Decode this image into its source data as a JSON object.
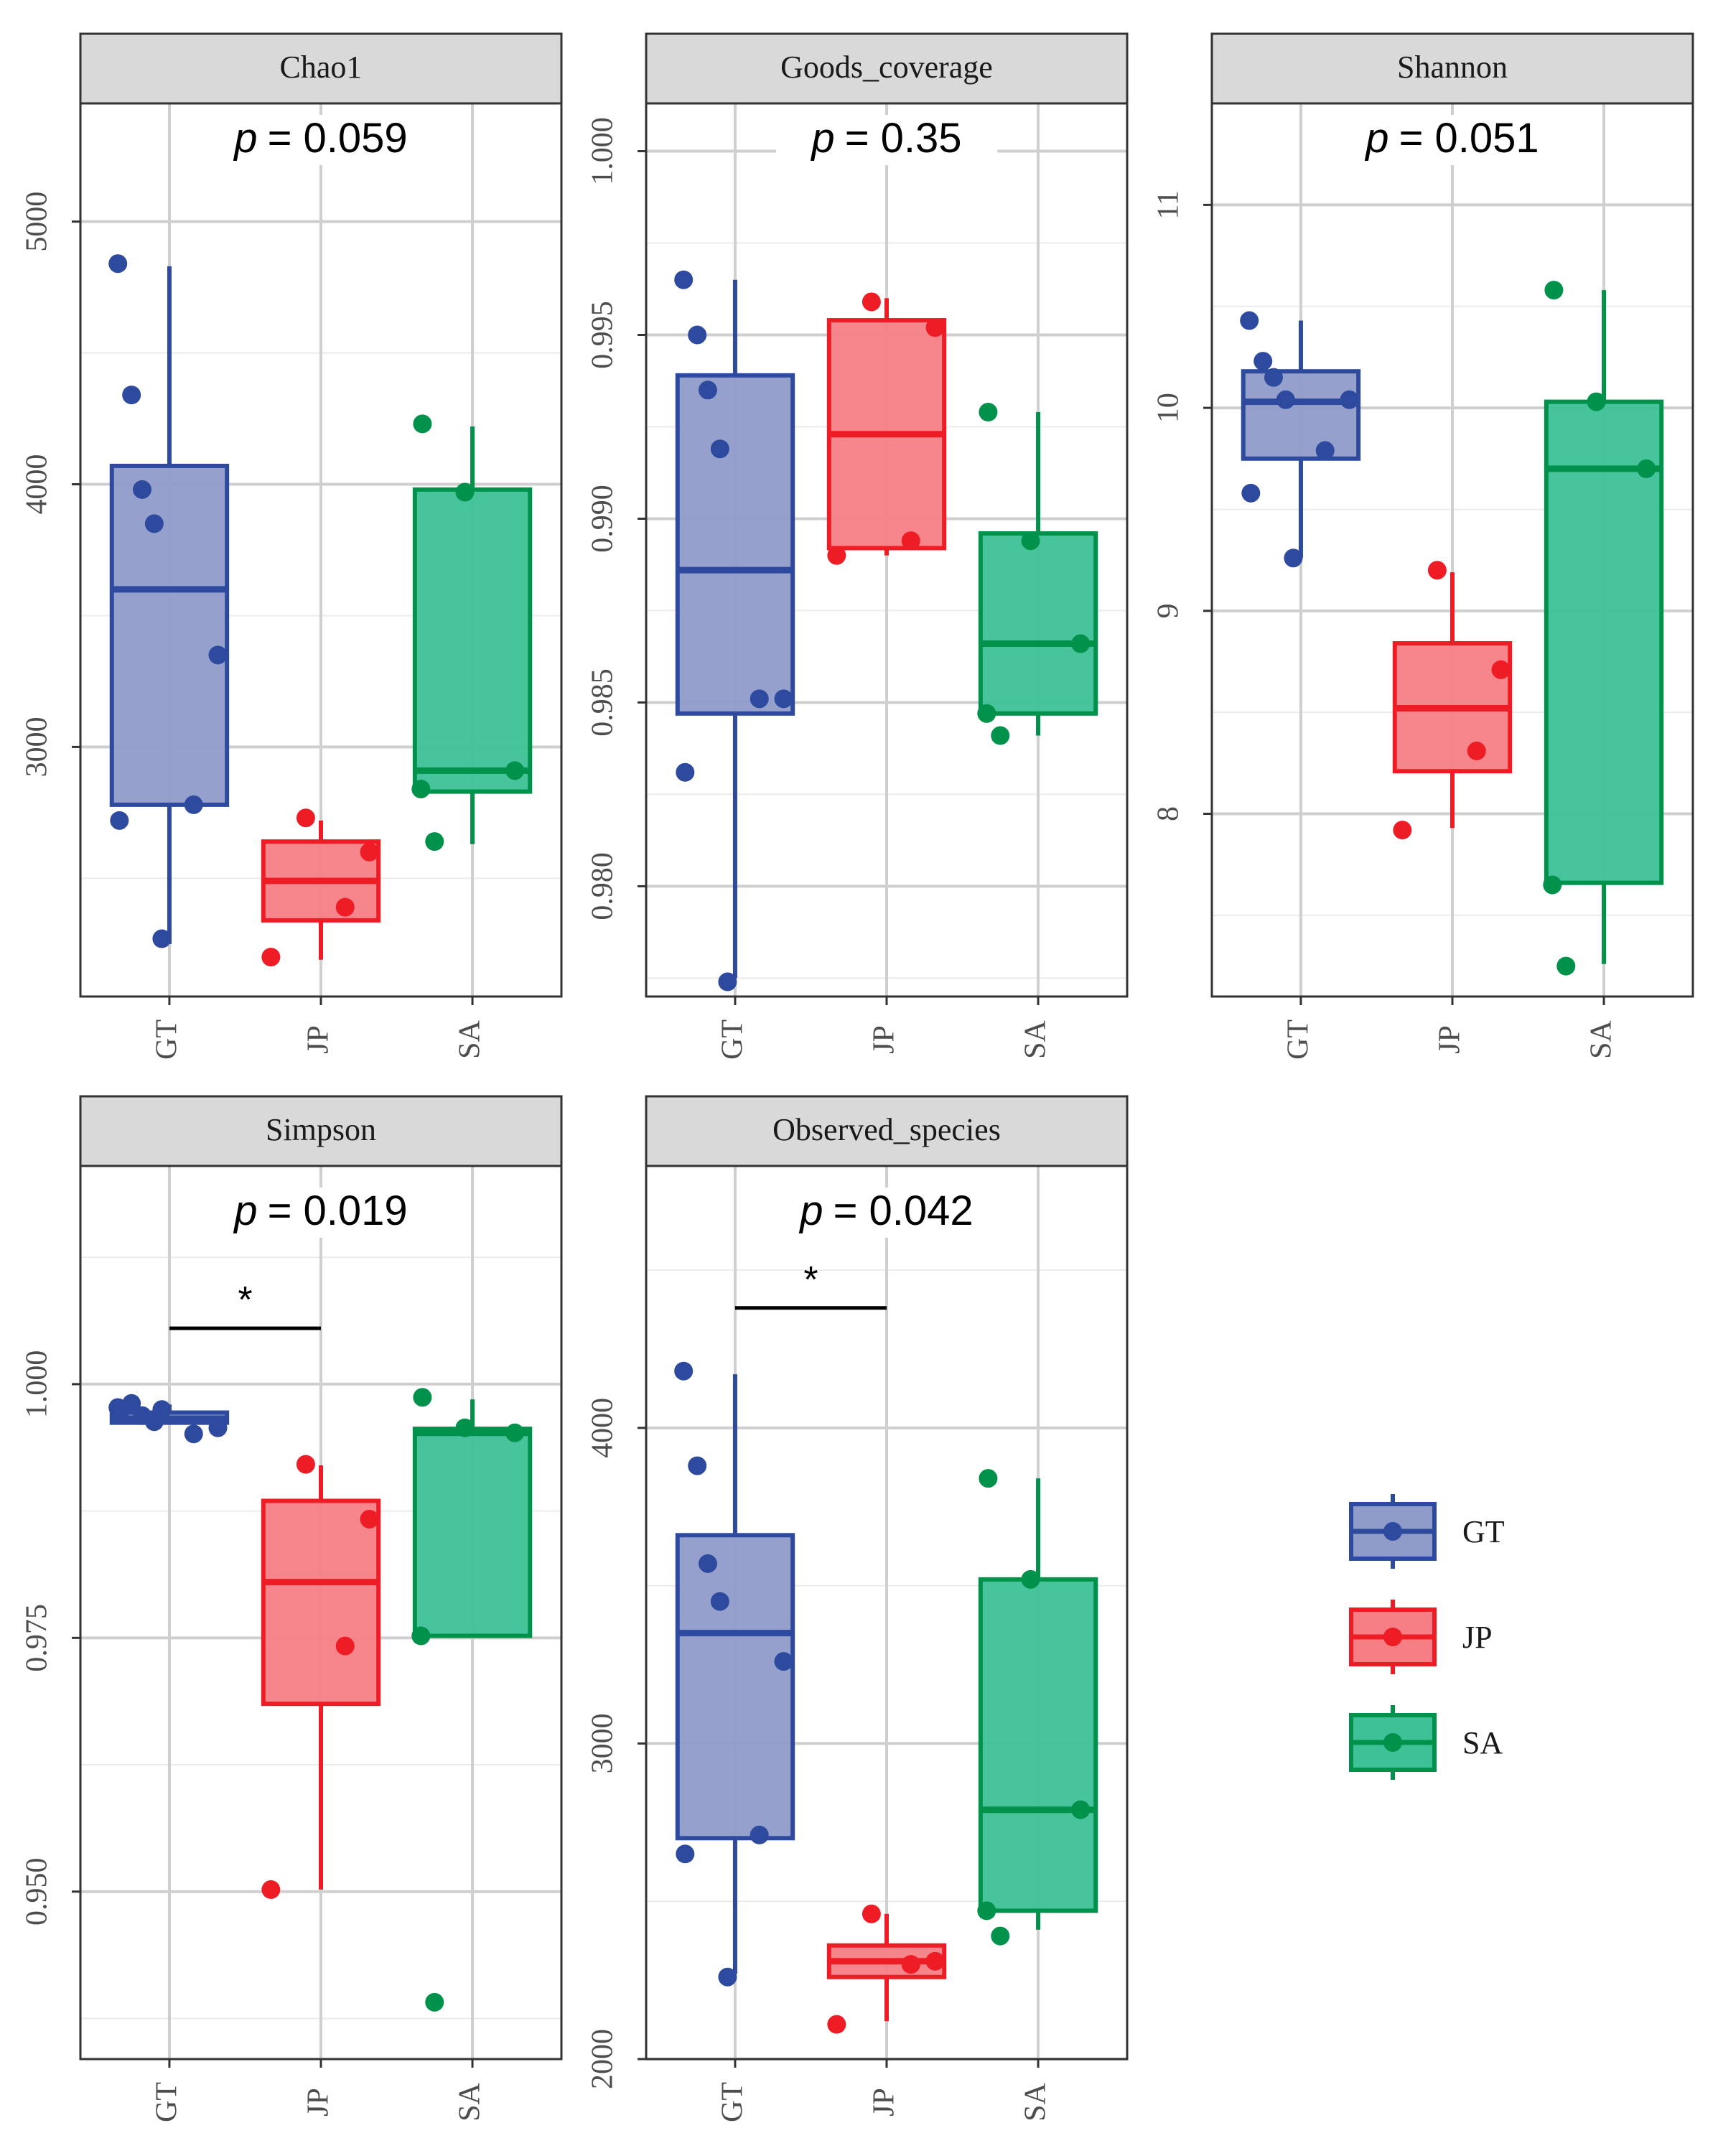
{
  "groups": [
    "GT",
    "JP",
    "SA"
  ],
  "colors": {
    "GT": {
      "line": "#2e4a9e",
      "fill": "#8f9cc9",
      "point": "#2e4a9e"
    },
    "JP": {
      "line": "#ee1c25",
      "fill": "#f67f86",
      "point": "#ee1c25"
    },
    "SA": {
      "line": "#00924a",
      "fill": "#3ec197",
      "point": "#00924a"
    }
  },
  "legend": {
    "items": [
      "GT",
      "JP",
      "SA"
    ]
  },
  "chart_data": [
    {
      "type": "boxplot",
      "title": "Chao1",
      "p_label": "p",
      "p_value": "= 0.059",
      "ylim": [
        2050,
        5450
      ],
      "yticks": [
        3000,
        4000,
        5000
      ],
      "yminor": [
        2500,
        3500,
        4500
      ],
      "boxes": {
        "GT": {
          "q1": 2780,
          "median": 3600,
          "q3": 4070,
          "whisker_low": 2250,
          "whisker_high": 4830
        },
        "JP": {
          "q1": 2340,
          "median": 2490,
          "q3": 2640,
          "whisker_low": 2190,
          "whisker_high": 2720
        },
        "SA": {
          "q1": 2830,
          "median": 2910,
          "q3": 3980,
          "whisker_low": 2630,
          "whisker_high": 4220
        }
      },
      "points": {
        "GT": [
          4840,
          4340,
          3980,
          3850,
          3350,
          2780,
          2720,
          2270
        ],
        "JP": [
          2730,
          2600,
          2390,
          2200
        ],
        "SA": [
          4230,
          3970,
          2910,
          2840,
          2640
        ]
      },
      "signif": null
    },
    {
      "type": "boxplot",
      "title": "Goods_coverage",
      "p_label": "p",
      "p_value": "= 0.35",
      "ylim": [
        0.977,
        1.0013
      ],
      "yticks": [
        0.98,
        0.985,
        0.99,
        0.995,
        1.0
      ],
      "ytick_labels": [
        "0.980",
        "0.985",
        "0.990",
        "0.995",
        "1.000"
      ],
      "yminor": [
        0.9775,
        0.9825,
        0.9875,
        0.9925,
        0.9975
      ],
      "boxes": {
        "GT": {
          "q1": 0.9847,
          "median": 0.9886,
          "q3": 0.9939,
          "whisker_low": 0.9775,
          "whisker_high": 0.9965
        },
        "JP": {
          "q1": 0.9892,
          "median": 0.9923,
          "q3": 0.9954,
          "whisker_low": 0.989,
          "whisker_high": 0.996
        },
        "SA": {
          "q1": 0.9847,
          "median": 0.9866,
          "q3": 0.9896,
          "whisker_low": 0.9841,
          "whisker_high": 0.9929
        }
      },
      "points": {
        "GT": [
          0.9965,
          0.995,
          0.9935,
          0.9919,
          0.9851,
          0.9851,
          0.9831,
          0.9774
        ],
        "JP": [
          0.9959,
          0.9952,
          0.9894,
          0.989
        ],
        "SA": [
          0.9929,
          0.9894,
          0.9866,
          0.9847,
          0.9841
        ]
      },
      "signif": null
    },
    {
      "type": "boxplot",
      "title": "Shannon",
      "p_label": "p",
      "p_value": "= 0.051",
      "ylim": [
        7.1,
        11.5
      ],
      "yticks": [
        8,
        9,
        10,
        11
      ],
      "yminor": [
        7.5,
        8.5,
        9.5,
        10.5
      ],
      "boxes": {
        "GT": {
          "q1": 9.75,
          "median": 10.03,
          "q3": 10.18,
          "whisker_low": 9.26,
          "whisker_high": 10.43
        },
        "JP": {
          "q1": 8.21,
          "median": 8.52,
          "q3": 8.84,
          "whisker_low": 7.93,
          "whisker_high": 9.19
        },
        "SA": {
          "q1": 7.66,
          "median": 9.7,
          "q3": 10.03,
          "whisker_low": 7.26,
          "whisker_high": 10.58
        }
      },
      "points": {
        "GT": [
          10.43,
          10.23,
          10.15,
          10.04,
          10.04,
          9.79,
          9.58,
          9.26
        ],
        "JP": [
          9.2,
          8.71,
          8.31,
          7.92
        ],
        "SA": [
          10.58,
          10.03,
          9.7,
          7.65,
          7.25
        ]
      },
      "signif": null
    },
    {
      "type": "boxplot",
      "title": "Simpson",
      "p_label": "p",
      "p_value": "= 0.019",
      "ylim": [
        0.9335,
        1.0215
      ],
      "yticks": [
        0.95,
        0.975,
        1.0
      ],
      "ytick_labels": [
        "0.950",
        "0.975",
        "1.000"
      ],
      "yminor": [
        0.9375,
        0.9625,
        0.9875,
        1.0125
      ],
      "boxes": {
        "GT": {
          "q1": 0.9962,
          "median": 0.9966,
          "q3": 0.9972,
          "whisker_low": 0.9962,
          "whisker_high": 0.998
        },
        "JP": {
          "q1": 0.9685,
          "median": 0.9805,
          "q3": 0.9885,
          "whisker_low": 0.9502,
          "whisker_high": 0.992
        },
        "SA": {
          "q1": 0.9752,
          "median": 0.9952,
          "q3": 0.9956,
          "whisker_low": 0.9752,
          "whisker_high": 0.9985
        }
      },
      "points": {
        "GT": [
          0.9977,
          0.9981,
          0.9969,
          0.9963,
          0.9957,
          0.9951,
          0.9971,
          0.9975
        ],
        "JP": [
          0.9921,
          0.9867,
          0.9742,
          0.9502
        ],
        "SA": [
          0.9987,
          0.9957,
          0.9952,
          0.9752,
          0.9391
        ]
      },
      "signif": {
        "from": "GT",
        "to": "JP",
        "label": "*",
        "y": 1.0055
      }
    },
    {
      "type": "boxplot",
      "title": "Observed_species",
      "p_label": "p",
      "p_value": "= 0.042",
      "ylim": [
        2000,
        4830
      ],
      "yticks": [
        2000,
        3000,
        4000
      ],
      "yminor": [
        2500,
        3500,
        4500
      ],
      "boxes": {
        "GT": {
          "q1": 2700,
          "median": 3350,
          "q3": 3660,
          "whisker_low": 2270,
          "whisker_high": 4170
        },
        "JP": {
          "q1": 2260,
          "median": 2310,
          "q3": 2360,
          "whisker_low": 2120,
          "whisker_high": 2460
        },
        "SA": {
          "q1": 2470,
          "median": 2790,
          "q3": 3520,
          "whisker_low": 2410,
          "whisker_high": 3840
        }
      },
      "points": {
        "GT": [
          4180,
          3880,
          3570,
          3450,
          3260,
          2710,
          2650,
          2260
        ],
        "JP": [
          2460,
          2310,
          2300,
          2110
        ],
        "SA": [
          3840,
          3520,
          2790,
          2470,
          2390
        ]
      },
      "signif": {
        "from": "GT",
        "to": "JP",
        "label": "*",
        "y": 4380
      }
    }
  ]
}
